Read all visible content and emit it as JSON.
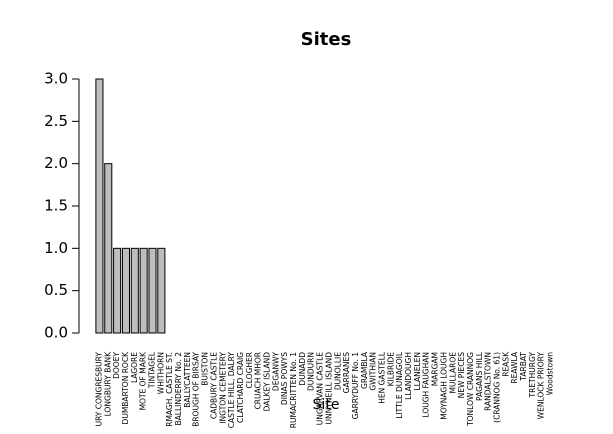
{
  "chart_data": {
    "type": "bar",
    "title": "Sites",
    "x_label": "Site",
    "categories": [
      "URY CONGRESBURY",
      "LONGBURY BANK",
      "DOOEY",
      "DUMBARTON ROCK",
      "LAGORE",
      "MOTE OF MARK",
      "TINTAGEL",
      "WHITHORN",
      "RMAGH, CASTLE ST.",
      "BALLINDERRY No. 2",
      "BALLYCATTEEN",
      "BROUGH OF BIRSAY",
      "BUISTON",
      "CADBURY CASTLE",
      "INGTON CEMETERY",
      "CASTLE HILL, DALRY",
      "CLATCHARD CRAIG",
      "CLOGHER",
      "CRUACH MHOR",
      "DALKEY ISLAND",
      "DEGANWY",
      "DINAS POWYS",
      "RUMACRITTEN No. 1",
      "DUNADD",
      "DUNDURN",
      "UNGARVAN CASTLE",
      "UNNYNEILL ISLAND",
      "DUNOLLIE",
      "GARRANES",
      "GARRYDUFF No. 1",
      "GRAMBLA",
      "GWITHIAN",
      "HEN GASTELL",
      "KILBRIDE",
      "LITTLE DUNAGOIL",
      "LLANDOUGH",
      "LLANELEN",
      "LOUGH FAUGHAN",
      "MARGAM",
      "MOYNAGH LOUGH",
      "MULLAROE",
      "NEW PIECES",
      "TONLOW CRANNOG",
      "PAGANS HILL",
      "RANDALSTOWN",
      "(CRANNOG No. 61)",
      "REASK",
      "REAWLA",
      "TARBAT",
      "TRETHURGY",
      "WENLOCK PRIORY",
      "Woodstown"
    ],
    "values": [
      3,
      2,
      1,
      1,
      1,
      1,
      1,
      1,
      0,
      0,
      0,
      0,
      0,
      0,
      0,
      0,
      0,
      0,
      0,
      0,
      0,
      0,
      0,
      0,
      0,
      0,
      0,
      0,
      0,
      0,
      0,
      0,
      0,
      0,
      0,
      0,
      0,
      0,
      0,
      0,
      0,
      0,
      0,
      0,
      0,
      0,
      0,
      0,
      0,
      0,
      0,
      0
    ],
    "color": "#bebebe",
    "ylim": [
      0,
      3
    ],
    "yticks": [
      {
        "value": 0,
        "label": "0.0"
      },
      {
        "value": 0.5,
        "label": "0.5"
      },
      {
        "value": 1,
        "label": "1.0"
      },
      {
        "value": 1.5,
        "label": "1.5"
      },
      {
        "value": 2,
        "label": "2.0"
      },
      {
        "value": 2.5,
        "label": "2.5"
      },
      {
        "value": 3,
        "label": "3.0"
      }
    ]
  }
}
